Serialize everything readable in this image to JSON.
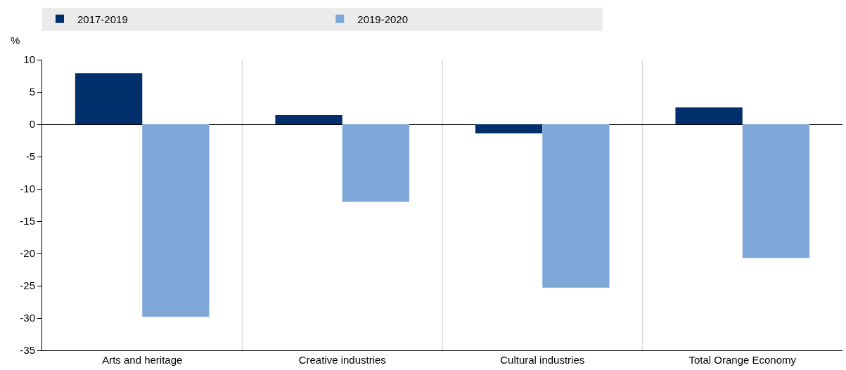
{
  "chart_data": {
    "type": "bar",
    "ylabel": "%",
    "categories": [
      "Arts and heritage",
      "Creative industries",
      "Cultural industries",
      "Total Orange Economy"
    ],
    "series": [
      {
        "name": "2017-2019",
        "color": "#002f6c",
        "values": [
          7.9,
          1.4,
          -1.4,
          2.6
        ]
      },
      {
        "name": "2019-2020",
        "color": "#7fa8d9",
        "values": [
          -29.8,
          -12.0,
          -25.3,
          -20.7
        ]
      }
    ],
    "ylim": [
      -35,
      10
    ],
    "yticks": [
      10,
      5,
      0,
      -5,
      -10,
      -15,
      -20,
      -25,
      -30,
      -35
    ],
    "grid": "x",
    "legend": "top"
  }
}
